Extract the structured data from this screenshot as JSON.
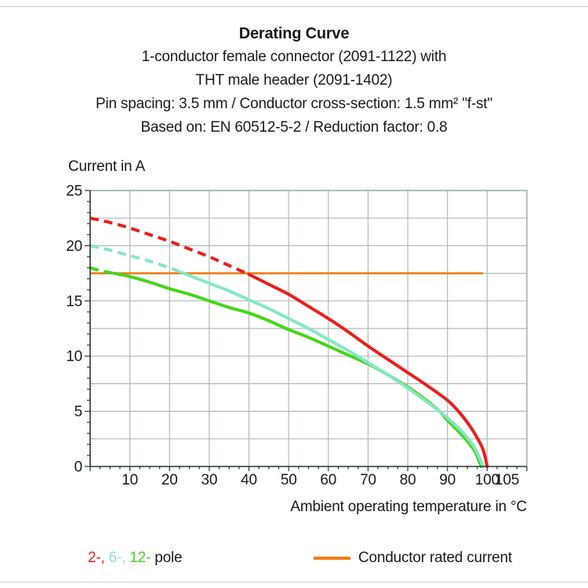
{
  "chart_data": {
    "type": "line",
    "title": "Derating Curve",
    "subtitle_lines": [
      "1-conductor female connector (2091-1122) with",
      "THT male header (2091-1402)",
      "Pin spacing: 3.5 mm / Conductor cross-section: 1.5 mm² \"f-st\"",
      "Based on: EN 60512-5-2 / Reduction factor: 0.8"
    ],
    "x_axis": {
      "label": "Ambient operating temperature in °C",
      "range": [
        0,
        110
      ],
      "gridline_step": 10,
      "minor_tick_step": 2.5,
      "major_tick_step": 10,
      "tick_labels": [
        10,
        20,
        30,
        40,
        50,
        60,
        70,
        80,
        90,
        100,
        105
      ]
    },
    "y_axis": {
      "label": "Current in A",
      "range": [
        0,
        25
      ],
      "gridline_step": 2.5,
      "minor_tick_step": 1,
      "major_tick_step": 5,
      "tick_labels": [
        0,
        5,
        10,
        15,
        20,
        25
      ]
    },
    "grid": true,
    "series": [
      {
        "name": "12-pole",
        "color": "#46d51c",
        "dash_until": 6,
        "points": [
          [
            0,
            18
          ],
          [
            3,
            17.7
          ],
          [
            6,
            17.5
          ],
          [
            10,
            17.2
          ],
          [
            15,
            16.7
          ],
          [
            20,
            16.1
          ],
          [
            25,
            15.6
          ],
          [
            30,
            15.0
          ],
          [
            35,
            14.4
          ],
          [
            40,
            13.9
          ],
          [
            45,
            13.2
          ],
          [
            50,
            12.4
          ],
          [
            55,
            11.7
          ],
          [
            60,
            10.9
          ],
          [
            65,
            10.1
          ],
          [
            70,
            9.3
          ],
          [
            75,
            8.3
          ],
          [
            80,
            7.2
          ],
          [
            85,
            5.9
          ],
          [
            88,
            5.0
          ],
          [
            90,
            4.2
          ],
          [
            93,
            3.1
          ],
          [
            95,
            2.3
          ],
          [
            97,
            1.3
          ],
          [
            98.5,
            0
          ]
        ]
      },
      {
        "name": "6-pole",
        "color": "#84e7c2",
        "dash_until": 23,
        "points": [
          [
            0,
            20
          ],
          [
            5,
            19.6
          ],
          [
            10,
            19.1
          ],
          [
            15,
            18.6
          ],
          [
            20,
            18.0
          ],
          [
            25,
            17.3
          ],
          [
            30,
            16.6
          ],
          [
            35,
            15.9
          ],
          [
            40,
            15.1
          ],
          [
            45,
            14.3
          ],
          [
            50,
            13.4
          ],
          [
            55,
            12.5
          ],
          [
            60,
            11.5
          ],
          [
            65,
            10.5
          ],
          [
            70,
            9.4
          ],
          [
            75,
            8.3
          ],
          [
            80,
            7.1
          ],
          [
            85,
            5.8
          ],
          [
            88,
            5.0
          ],
          [
            90,
            4.4
          ],
          [
            93,
            3.4
          ],
          [
            95,
            2.6
          ],
          [
            97,
            1.6
          ],
          [
            99,
            0
          ]
        ]
      },
      {
        "name": "2-pole",
        "color": "#e8201a",
        "dash_until": 40,
        "points": [
          [
            0,
            22.5
          ],
          [
            5,
            22.1
          ],
          [
            10,
            21.6
          ],
          [
            15,
            21.0
          ],
          [
            20,
            20.4
          ],
          [
            25,
            19.7
          ],
          [
            30,
            19.0
          ],
          [
            35,
            18.2
          ],
          [
            40,
            17.4
          ],
          [
            45,
            16.5
          ],
          [
            50,
            15.6
          ],
          [
            55,
            14.5
          ],
          [
            60,
            13.4
          ],
          [
            65,
            12.2
          ],
          [
            70,
            10.9
          ],
          [
            75,
            9.7
          ],
          [
            80,
            8.5
          ],
          [
            85,
            7.3
          ],
          [
            90,
            6.0
          ],
          [
            93,
            4.9
          ],
          [
            95,
            4.0
          ],
          [
            97,
            2.9
          ],
          [
            99,
            1.5
          ],
          [
            100,
            0
          ]
        ]
      }
    ],
    "rated_current": {
      "label": "Conductor rated current",
      "value": 17.5,
      "x_end": 99,
      "color": "#f17c15"
    },
    "legend": {
      "position": "bottom",
      "pole_segments": [
        {
          "text": "2-,",
          "color": "#e8201a"
        },
        {
          "text": " 6-,",
          "color": "#84e7c2"
        },
        {
          "text": " 12-",
          "color": "#46d51c"
        },
        {
          "text": " pole",
          "color": "#1a1a1a"
        }
      ]
    },
    "colors": {
      "grid": "#b0baba",
      "frame": "#97a5a5",
      "axis": "#2c3636",
      "text": "#1a1a1a"
    }
  }
}
